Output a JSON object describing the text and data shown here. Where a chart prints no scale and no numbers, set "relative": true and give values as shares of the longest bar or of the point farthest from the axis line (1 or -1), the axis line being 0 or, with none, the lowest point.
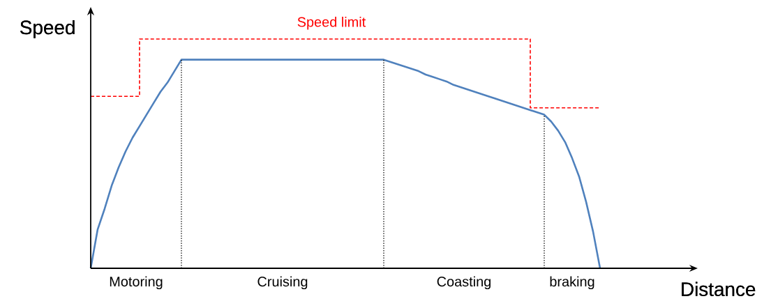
{
  "chart_data": {
    "type": "line",
    "relative": true,
    "xlabel": "Distance",
    "ylabel": "Speed",
    "categories": [
      null,
      null,
      null,
      null,
      null,
      null,
      null,
      null,
      null,
      null,
      null,
      null,
      null,
      null,
      null,
      null,
      null,
      null,
      null,
      null,
      null,
      null,
      null,
      null,
      null,
      null,
      null,
      null,
      null,
      null,
      null,
      null,
      null,
      null,
      null,
      null,
      null,
      null,
      null,
      null,
      null,
      null,
      null,
      null,
      null,
      null,
      null,
      null,
      null,
      null,
      null,
      null,
      null,
      null,
      null,
      null,
      null,
      null,
      null,
      null,
      null,
      null,
      null,
      null,
      null,
      null,
      null,
      null,
      null,
      null,
      null,
      null,
      null,
      null
    ],
    "series": [
      {
        "name": "Speed limit",
        "type": "step",
        "color": "#ff0000",
        "line_style": "dashed",
        "values": [
          0.75,
          0.75,
          0.75,
          0.75,
          0.75,
          0.75,
          0.75,
          1,
          1,
          1,
          1,
          1,
          1,
          1,
          1,
          1,
          1,
          1,
          1,
          1,
          1,
          1,
          1,
          1,
          1,
          1,
          1,
          1,
          1,
          1,
          1,
          1,
          1,
          1,
          1,
          1,
          1,
          1,
          1,
          1,
          1,
          1,
          1,
          1,
          1,
          1,
          1,
          1,
          1,
          1,
          1,
          1,
          1,
          1,
          1,
          1,
          1,
          1,
          1,
          1,
          1,
          1,
          1,
          0.7,
          0.7,
          0.7,
          0.7,
          0.7,
          0.7,
          0.7,
          0.7,
          0.7,
          0.7,
          0.7
        ]
      },
      {
        "color": "#4f81bd",
        "line_style": "solid",
        "values": [
          0,
          0.17,
          0.26,
          0.36,
          0.44,
          0.51,
          0.57,
          0.62,
          0.67,
          0.72,
          0.77,
          0.81,
          0.86,
          0.91,
          0.91,
          0.91,
          0.91,
          0.91,
          0.91,
          0.91,
          0.91,
          0.91,
          0.91,
          0.91,
          0.91,
          0.91,
          0.91,
          0.91,
          0.91,
          0.91,
          0.91,
          0.91,
          0.91,
          0.91,
          0.91,
          0.91,
          0.91,
          0.91,
          0.91,
          0.91,
          0.91,
          0.91,
          0.91,
          0.9,
          0.89,
          0.88,
          0.87,
          0.86,
          0.845,
          0.835,
          0.825,
          0.815,
          0.8,
          0.79,
          0.78,
          0.77,
          0.76,
          0.75,
          0.74,
          0.73,
          0.72,
          0.71,
          0.7,
          0.69,
          0.68,
          0.67,
          0.64,
          0.6,
          0.55,
          0.48,
          0.4,
          0.29,
          0.16,
          0
        ]
      }
    ],
    "annotations": [
      "Motoring",
      "Cruising",
      "Coasting",
      "braking"
    ]
  }
}
